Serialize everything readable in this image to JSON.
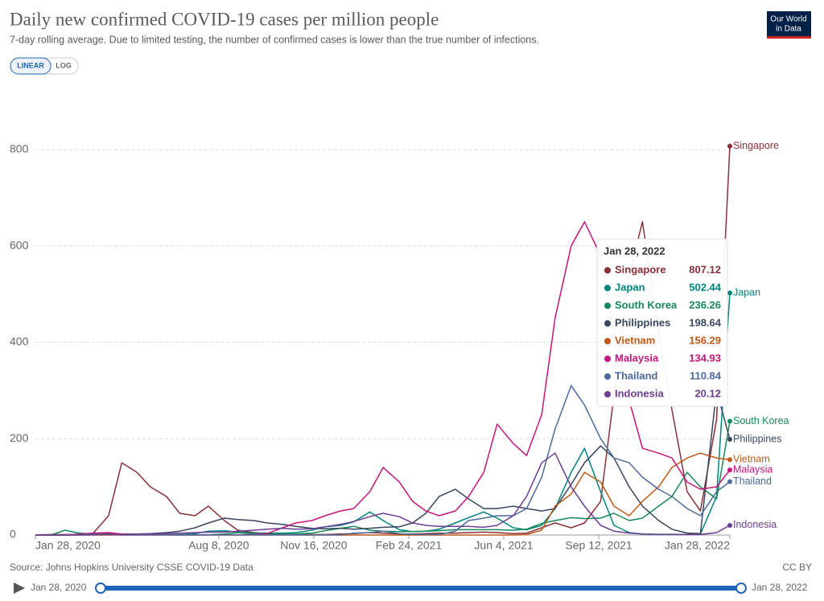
{
  "chart_data": {
    "type": "line",
    "title": "Daily new confirmed COVID-19 cases per million people",
    "subtitle": "7-day rolling average. Due to limited testing, the number of confirmed cases is lower than the true number of infections.",
    "logo": [
      "Our World",
      "in Data"
    ],
    "scale_buttons": [
      "LINEAR",
      "LOG"
    ],
    "source": "Source: Johns Hopkins University CSSE COVID-19 Data",
    "license": "CC BY",
    "x": [
      "2020-01-28",
      "2020-02-14",
      "2020-02-28",
      "2020-03-14",
      "2020-03-28",
      "2020-04-14",
      "2020-04-28",
      "2020-05-14",
      "2020-05-28",
      "2020-06-14",
      "2020-06-28",
      "2020-07-14",
      "2020-07-28",
      "2020-08-14",
      "2020-08-28",
      "2020-09-14",
      "2020-09-28",
      "2020-10-14",
      "2020-10-28",
      "2020-11-14",
      "2020-11-28",
      "2020-12-14",
      "2020-12-28",
      "2021-01-14",
      "2021-01-28",
      "2021-02-14",
      "2021-02-28",
      "2021-03-14",
      "2021-03-28",
      "2021-04-14",
      "2021-04-28",
      "2021-05-14",
      "2021-05-28",
      "2021-06-14",
      "2021-06-28",
      "2021-07-14",
      "2021-07-28",
      "2021-08-14",
      "2021-08-28",
      "2021-09-14",
      "2021-09-28",
      "2021-10-14",
      "2021-10-28",
      "2021-11-14",
      "2021-11-28",
      "2021-12-14",
      "2021-12-28",
      "2022-01-14",
      "2022-01-28"
    ],
    "xlim": [
      "2020-01-28",
      "2022-01-28"
    ],
    "xticks": [
      {
        "value": "2020-01-28",
        "label": "Jan 28, 2020"
      },
      {
        "value": "2020-08-08",
        "label": "Aug 8, 2020"
      },
      {
        "value": "2020-11-16",
        "label": "Nov 16, 2020"
      },
      {
        "value": "2021-02-24",
        "label": "Feb 24, 2021"
      },
      {
        "value": "2021-06-04",
        "label": "Jun 4, 2021"
      },
      {
        "value": "2021-09-12",
        "label": "Sep 12, 2021"
      },
      {
        "value": "2022-01-28",
        "label": "Jan 28, 2022"
      }
    ],
    "ylim": [
      0,
      940
    ],
    "yticks": [
      0,
      200,
      400,
      600,
      800
    ],
    "grid": true,
    "series": [
      {
        "name": "Singapore",
        "color": "#883039",
        "values": [
          0.5,
          1,
          1,
          1,
          2,
          40,
          150,
          130,
          100,
          80,
          45,
          40,
          60,
          30,
          10,
          5,
          3,
          2,
          1,
          1,
          1,
          2,
          3,
          5,
          4,
          2,
          2,
          3,
          4,
          4,
          5,
          6,
          5,
          3,
          4,
          15,
          25,
          15,
          25,
          70,
          290,
          540,
          650,
          420,
          260,
          90,
          50,
          240,
          807.12
        ]
      },
      {
        "name": "Japan",
        "color": "#00847e",
        "values": [
          0,
          0,
          0.1,
          0.2,
          0.5,
          3,
          2,
          0.5,
          0.3,
          0.3,
          1,
          3,
          8,
          9,
          6,
          4,
          4,
          4,
          5,
          10,
          17,
          20,
          27,
          48,
          30,
          11,
          7,
          8,
          12,
          25,
          36,
          48,
          35,
          15,
          11,
          20,
          55,
          130,
          180,
          90,
          20,
          5,
          2,
          1,
          1,
          1,
          2,
          80,
          502.44
        ]
      },
      {
        "name": "South Korea",
        "color": "#18875a",
        "values": [
          0,
          0.5,
          10,
          4,
          2,
          0.7,
          0.2,
          0.5,
          0.8,
          0.8,
          0.8,
          0.7,
          0.6,
          2,
          5,
          2.5,
          1.5,
          1.5,
          2,
          4,
          9,
          14,
          18,
          10,
          8,
          7,
          7,
          8,
          9,
          11,
          11,
          11,
          11,
          10,
          12,
          24,
          30,
          36,
          34,
          35,
          45,
          30,
          35,
          60,
          80,
          130,
          100,
          75,
          236.26
        ]
      },
      {
        "name": "Philippines",
        "color": "#38465e",
        "values": [
          0,
          0,
          0,
          0.5,
          1.5,
          2,
          2,
          2,
          3,
          5,
          8,
          15,
          25,
          35,
          32,
          30,
          25,
          22,
          18,
          14,
          13,
          14,
          12,
          14,
          16,
          17,
          25,
          45,
          80,
          95,
          75,
          55,
          55,
          60,
          55,
          50,
          55,
          105,
          150,
          185,
          160,
          100,
          60,
          30,
          12,
          4,
          3,
          300,
          198.64
        ]
      },
      {
        "name": "Vietnam",
        "color": "#c05917",
        "values": [
          0,
          0,
          0,
          0,
          0,
          0,
          0,
          0,
          0,
          0,
          0,
          0,
          0,
          0,
          0,
          0,
          0,
          0,
          0,
          0,
          0,
          0,
          0,
          0,
          0,
          0,
          0,
          0,
          0,
          0,
          0,
          0,
          0,
          0,
          1,
          10,
          60,
          85,
          130,
          110,
          60,
          40,
          70,
          100,
          140,
          160,
          170,
          160,
          156.29
        ]
      },
      {
        "name": "Malaysia",
        "color": "#c5157c",
        "values": [
          0,
          0,
          0.1,
          2,
          4,
          5,
          2,
          2,
          1,
          0.5,
          0.2,
          0.2,
          0.3,
          0.5,
          0.5,
          1,
          3,
          15,
          25,
          30,
          40,
          50,
          55,
          90,
          140,
          110,
          70,
          50,
          40,
          50,
          80,
          130,
          230,
          190,
          165,
          250,
          450,
          600,
          650,
          580,
          420,
          280,
          180,
          170,
          160,
          110,
          95,
          100,
          134.93
        ]
      },
      {
        "name": "Thailand",
        "color": "#4c6a9c",
        "values": [
          0,
          0,
          0.1,
          1,
          2,
          1,
          0.2,
          0.1,
          0.1,
          0.1,
          0.1,
          0.1,
          0.1,
          0.1,
          0.1,
          0.1,
          0.1,
          0.1,
          0.1,
          0.1,
          0.1,
          0.1,
          4,
          5,
          8,
          3,
          1,
          1,
          1,
          8,
          30,
          35,
          40,
          40,
          55,
          120,
          220,
          310,
          270,
          200,
          160,
          150,
          120,
          95,
          80,
          55,
          40,
          90,
          110.84
        ]
      },
      {
        "name": "Indonesia",
        "color": "#6d3e91",
        "values": [
          0,
          0,
          0,
          0.1,
          0.5,
          1,
          1,
          2,
          2,
          3,
          4,
          5,
          6,
          6,
          8,
          10,
          12,
          14,
          12,
          13,
          17,
          22,
          28,
          38,
          45,
          38,
          25,
          20,
          18,
          18,
          18,
          16,
          20,
          40,
          80,
          150,
          170,
          100,
          60,
          20,
          8,
          4,
          2,
          1.5,
          1.5,
          1,
          1,
          5,
          20.12
        ]
      }
    ]
  }
}
